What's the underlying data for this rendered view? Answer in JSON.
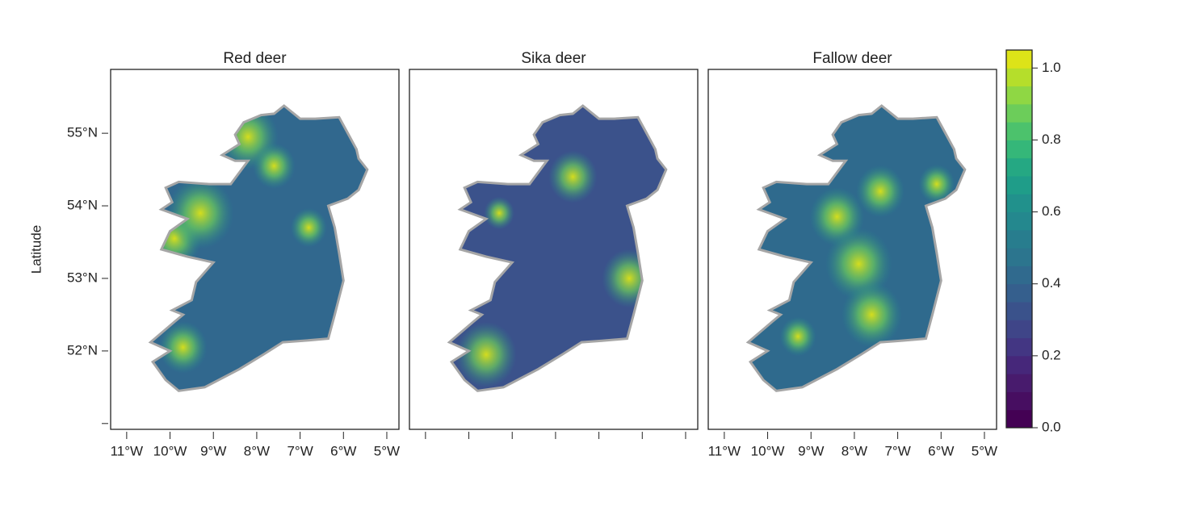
{
  "ylabel": "Latitude",
  "panels": [
    {
      "title": "Red deer",
      "show_xtick_labels": true
    },
    {
      "title": "Sika deer",
      "show_xtick_labels": false
    },
    {
      "title": "Fallow deer",
      "show_xtick_labels": true
    }
  ],
  "xlim": [
    -11.37,
    -4.72
  ],
  "ylim": [
    50.92,
    55.88
  ],
  "xticks": [
    {
      "value": -11,
      "label": "11°W"
    },
    {
      "value": -10,
      "label": "10°W"
    },
    {
      "value": -9,
      "label": "9°W"
    },
    {
      "value": -8,
      "label": "8°W"
    },
    {
      "value": -7,
      "label": "7°W"
    },
    {
      "value": -6,
      "label": "6°W"
    },
    {
      "value": -5,
      "label": "5°W"
    }
  ],
  "yticks": [
    {
      "value": 51,
      "label": null
    },
    {
      "value": 52,
      "label": "52°N"
    },
    {
      "value": 53,
      "label": "53°N"
    },
    {
      "value": 54,
      "label": "54°N"
    },
    {
      "value": 55,
      "label": "55°N"
    }
  ],
  "colorbar": {
    "lim": [
      0,
      1.05
    ],
    "ticks": [
      {
        "value": 0,
        "label": "0.0"
      },
      {
        "value": 0.2,
        "label": "0.2"
      },
      {
        "value": 0.4,
        "label": "0.4"
      },
      {
        "value": 0.6,
        "label": "0.6"
      },
      {
        "value": 0.8,
        "label": "0.8"
      },
      {
        "value": 1,
        "label": "1.0"
      }
    ],
    "colors": [
      "#440154",
      "#470e61",
      "#481b6d",
      "#46277a",
      "#433683",
      "#3f4588",
      "#3a528b",
      "#355f8d",
      "#306a8e",
      "#2c758e",
      "#287d8e",
      "#24888e",
      "#21918c",
      "#1f9d89",
      "#25a883",
      "#35b779",
      "#4cc26c",
      "#6ccd5a",
      "#8fd744",
      "#b5de2b",
      "#dde318"
    ]
  }
}
